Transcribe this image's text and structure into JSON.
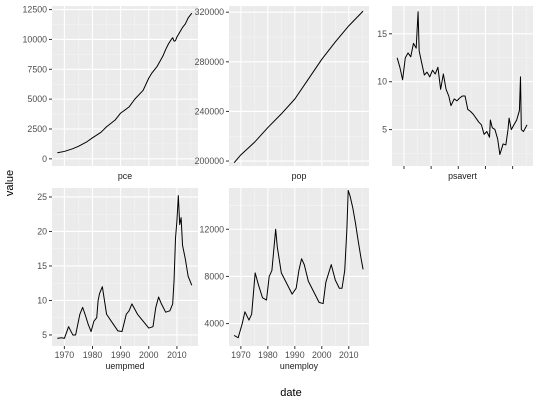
{
  "chart_data": {
    "type": "line",
    "xlabel": "date",
    "ylabel": "value",
    "x_ticks": [
      1970,
      1980,
      1990,
      2000,
      2010
    ],
    "x_range": [
      1965.6,
      2017.5
    ],
    "panels": [
      {
        "name": "pce",
        "ylim": [
          -600,
          12800
        ],
        "y_ticks": [
          0,
          2500,
          5000,
          7500,
          10000,
          12500
        ],
        "y_tick_labels": [
          "0",
          "2500",
          "5000",
          "7500",
          "10000",
          "12500"
        ],
        "x": [
          1967.5,
          1970,
          1973,
          1975,
          1978,
          1980,
          1983,
          1985,
          1988,
          1990,
          1993,
          1995,
          1998,
          2000,
          2001,
          2003,
          2005,
          2006,
          2007,
          2008,
          2008.5,
          2009,
          2009.5,
          2010,
          2011,
          2012,
          2013,
          2014,
          2015.3
        ],
        "values": [
          507,
          620,
          850,
          1050,
          1430,
          1760,
          2220,
          2690,
          3240,
          3830,
          4350,
          4990,
          5740,
          6760,
          7150,
          7750,
          8600,
          9150,
          9630,
          10000,
          10150,
          9850,
          9900,
          10200,
          10600,
          11000,
          11300,
          11800,
          12200
        ]
      },
      {
        "name": "pop",
        "ylim": [
          196000,
          325000
        ],
        "y_ticks": [
          200000,
          240000,
          280000,
          320000
        ],
        "y_tick_labels": [
          "200000",
          "240000",
          "280000",
          "320000"
        ],
        "x": [
          1967.5,
          1970,
          1975,
          1980,
          1985,
          1990,
          1995,
          2000,
          2005,
          2010,
          2015.3
        ],
        "values": [
          198700,
          205000,
          215000,
          227000,
          238000,
          250000,
          266000,
          282000,
          296000,
          309000,
          320900
        ]
      },
      {
        "name": "psavert",
        "ylim": [
          1.2,
          17.9
        ],
        "y_ticks": [
          5,
          10,
          15
        ],
        "y_tick_labels": [
          "5",
          "10",
          "15"
        ],
        "x": [
          1967.5,
          1968.5,
          1969.5,
          1970.5,
          1971.5,
          1972.5,
          1973.5,
          1974.5,
          1975.2,
          1975.6,
          1976.5,
          1977.5,
          1978.5,
          1979.5,
          1980.5,
          1981.5,
          1982.5,
          1983.5,
          1984.5,
          1985.5,
          1986.5,
          1987.3,
          1988.5,
          1989.5,
          1990.5,
          1991.5,
          1992.5,
          1993.5,
          1994.5,
          1995.5,
          1996.5,
          1997.5,
          1998.5,
          1999.5,
          2000.5,
          2001.5,
          2001.8,
          2002.5,
          2003.5,
          2004.5,
          2005.3,
          2006.5,
          2007.5,
          2008.3,
          2008.7,
          2009.5,
          2010.5,
          2011.5,
          2012.5,
          2012.9,
          2013.2,
          2014,
          2015.3
        ],
        "values": [
          12.5,
          11.5,
          10.2,
          12.5,
          13,
          12.6,
          14,
          13.5,
          17.3,
          13.2,
          12,
          10.7,
          11,
          10.5,
          11.2,
          10.8,
          11.5,
          9.2,
          10.8,
          9.2,
          8.5,
          7.5,
          8.2,
          8.0,
          8.3,
          8.5,
          8.5,
          7.1,
          6.9,
          6.6,
          6.2,
          5.8,
          5.5,
          4.5,
          4.8,
          4.2,
          6.0,
          5.2,
          5.0,
          4.0,
          2.4,
          3.5,
          3.4,
          5.0,
          6.2,
          5.0,
          5.5,
          6.0,
          7.0,
          10.5,
          5.0,
          4.8,
          5.5
        ]
      },
      {
        "name": "uempmed",
        "ylim": [
          3.4,
          26.3
        ],
        "y_ticks": [
          5,
          10,
          15,
          20,
          25
        ],
        "y_tick_labels": [
          "5",
          "10",
          "15",
          "20",
          "25"
        ],
        "x": [
          1967.5,
          1969,
          1970,
          1971.5,
          1973,
          1974,
          1975.5,
          1976.5,
          1977.5,
          1978.5,
          1979.5,
          1980.5,
          1981.5,
          1982,
          1982.5,
          1983.5,
          1985,
          1987,
          1989,
          1990.5,
          1992,
          1993,
          1994,
          1996,
          1998,
          2000,
          2001.5,
          2002.5,
          2003.5,
          2004.5,
          2006,
          2007.5,
          2008.5,
          2009,
          2009.5,
          2010,
          2010.5,
          2011,
          2011.5,
          2012,
          2013,
          2014,
          2015.3
        ],
        "values": [
          4.5,
          4.6,
          4.5,
          6.2,
          5.0,
          5.0,
          8.0,
          9.0,
          7.8,
          6.5,
          5.5,
          7.0,
          7.5,
          10.0,
          11.0,
          12.0,
          8.0,
          6.8,
          5.6,
          5.5,
          8.0,
          8.5,
          9.5,
          8.0,
          7.0,
          6.0,
          6.2,
          9.0,
          10.5,
          9.5,
          8.3,
          8.5,
          9.5,
          13.0,
          19.0,
          21.5,
          25.2,
          21.0,
          22.0,
          18.0,
          16.0,
          13.5,
          12.2
        ]
      },
      {
        "name": "unemploy",
        "ylim": [
          2100,
          15500
        ],
        "y_ticks": [
          4000,
          8000,
          12000
        ],
        "y_tick_labels": [
          "4000",
          "8000",
          "12000"
        ],
        "x": [
          1967.5,
          1969,
          1970.5,
          1971.5,
          1973,
          1974,
          1975.3,
          1976.5,
          1978,
          1979.5,
          1980.5,
          1981.5,
          1982.9,
          1983.5,
          1985,
          1987,
          1989,
          1990.5,
          1991.5,
          1992.5,
          1993.5,
          1995,
          1997,
          1999,
          2000.5,
          2001.5,
          2003.5,
          2005,
          2006.5,
          2007.5,
          2008.5,
          2009.3,
          2009.8,
          2010.5,
          2011.5,
          2012.5,
          2013.5,
          2014.5,
          2015.3
        ],
        "values": [
          3000,
          2800,
          4000,
          5000,
          4300,
          4800,
          8300,
          7300,
          6200,
          6000,
          8000,
          8500,
          12000,
          10500,
          8300,
          7400,
          6500,
          7000,
          8500,
          9500,
          9000,
          7600,
          6700,
          5800,
          5700,
          7500,
          9000,
          7700,
          7000,
          7000,
          8500,
          12000,
          15300,
          14800,
          13800,
          12500,
          11000,
          9600,
          8600
        ]
      }
    ]
  }
}
